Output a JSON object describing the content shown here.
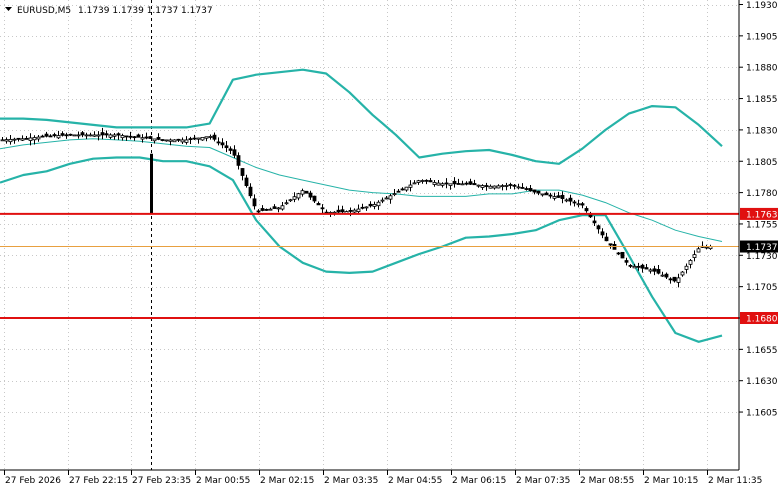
{
  "header": {
    "symbol": "EURUSD,M5",
    "ohlc": "1.1739 1.1739 1.1737 1.1737"
  },
  "colors": {
    "band": "#26b3a8",
    "middle": "#26b3a8",
    "resistance": "#e01010",
    "current": "#e8a040",
    "grid": "#c8c8c8",
    "candle": "#000000"
  },
  "chart_data": {
    "type": "line",
    "title": "EURUSD,M5",
    "y_axis_ticks": [
      "1.1930",
      "1.1905",
      "1.1880",
      "1.1855",
      "1.1830",
      "1.1805",
      "1.1780",
      "1.1755",
      "1.1730",
      "1.1705",
      "1.1680",
      "1.1655",
      "1.1630",
      "1.1605"
    ],
    "x_axis_ticks": [
      "27 Feb 2026",
      "27 Feb 22:15",
      "27 Feb 23:35",
      "2 Mar 00:55",
      "2 Mar 02:15",
      "2 Mar 03:35",
      "2 Mar 04:55",
      "2 Mar 06:15",
      "2 Mar 07:35",
      "2 Mar 08:55",
      "2 Mar 10:15",
      "2 Mar 11:35"
    ],
    "ylim": [
      1.16,
      1.1935
    ],
    "grid": true,
    "session_break": "27 Feb 23:35",
    "levels": [
      {
        "label": "1.1763",
        "value": 1.1763,
        "color": "#e01010"
      },
      {
        "label": "1.1680",
        "value": 1.168,
        "color": "#e01010"
      }
    ],
    "current_price": {
      "label": "1.1737",
      "value": 1.1737
    },
    "series": [
      {
        "values": [
          1.1839,
          1.1839,
          1.1838,
          1.1836,
          1.1834,
          1.1832,
          1.1832,
          1.1832,
          1.1832,
          1.1835,
          1.187,
          1.1874,
          1.1876,
          1.1878,
          1.1875,
          1.186,
          1.1842,
          1.1826,
          1.1808,
          1.1811,
          1.1813,
          1.1814,
          1.181,
          1.1805,
          1.1803,
          1.1815,
          1.183,
          1.1843,
          1.1849,
          1.1848,
          1.1834,
          1.1817
        ]
      },
      {
        "values": [
          1.1815,
          1.1818,
          1.182,
          1.1822,
          1.1823,
          1.1822,
          1.1821,
          1.1819,
          1.1817,
          1.1816,
          1.1808,
          1.18,
          1.1794,
          1.179,
          1.1786,
          1.1782,
          1.178,
          1.1779,
          1.1777,
          1.1777,
          1.1777,
          1.1779,
          1.1779,
          1.1782,
          1.1782,
          1.1778,
          1.1772,
          1.1764,
          1.1758,
          1.175,
          1.1745,
          1.1741
        ]
      },
      {
        "values": [
          1.1788,
          1.1794,
          1.1797,
          1.1803,
          1.1807,
          1.1808,
          1.1808,
          1.1805,
          1.1805,
          1.1801,
          1.179,
          1.1758,
          1.1737,
          1.1724,
          1.1717,
          1.1716,
          1.1717,
          1.1724,
          1.1731,
          1.1737,
          1.1744,
          1.1745,
          1.1747,
          1.175,
          1.1758,
          1.1762,
          1.1762,
          1.173,
          1.1697,
          1.1668,
          1.1661,
          1.1666
        ]
      },
      {
        "values": [
          1.1822,
          1.1823,
          1.1825,
          1.1826,
          1.1826,
          1.1826,
          1.1824,
          1.1822,
          1.1822,
          1.1825,
          1.1812,
          1.1765,
          1.1768,
          1.1782,
          1.1764,
          1.1765,
          1.177,
          1.178,
          1.179,
          1.1787,
          1.1787,
          1.1785,
          1.1786,
          1.178,
          1.1776,
          1.177,
          1.1742,
          1.1722,
          1.1718,
          1.1709,
          1.1736,
          1.1738
        ]
      }
    ]
  }
}
